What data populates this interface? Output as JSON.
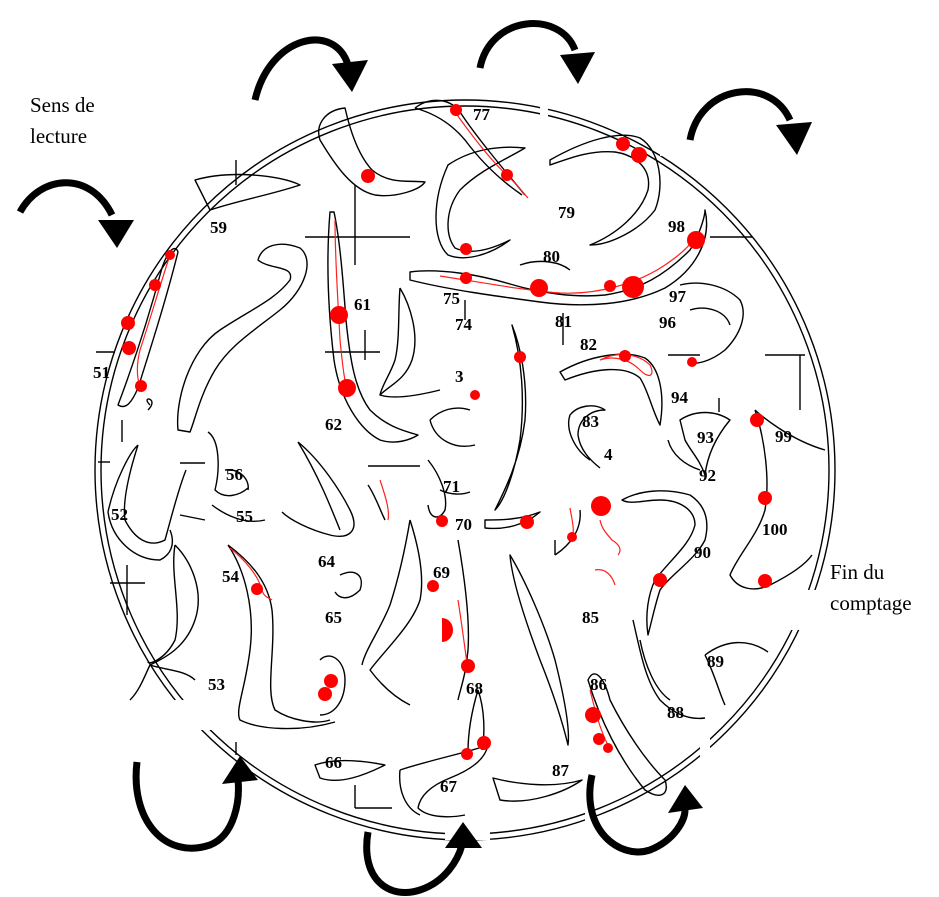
{
  "captions": {
    "reading_direction": "Sens de lecture",
    "end_of_count": "Fin du comptage"
  },
  "cell_numbers": [
    "51",
    "52",
    "53",
    "54",
    "55",
    "56",
    "59",
    "61",
    "62",
    "64",
    "65",
    "66",
    "67",
    "68",
    "69",
    "70",
    "71",
    "74",
    "75",
    "77",
    "79",
    "80",
    "81",
    "82",
    "83",
    "4",
    "85",
    "86",
    "87",
    "88",
    "89",
    "90",
    "92",
    "93",
    "94",
    "96",
    "97",
    "98",
    "99",
    "100",
    "3"
  ],
  "colors": {
    "outline": "#000000",
    "marker": "#ff0000",
    "background": "#ffffff"
  },
  "icons": {
    "direction_arrow": "curved-arrow-icon",
    "crosshair": "crosshair-icon"
  }
}
